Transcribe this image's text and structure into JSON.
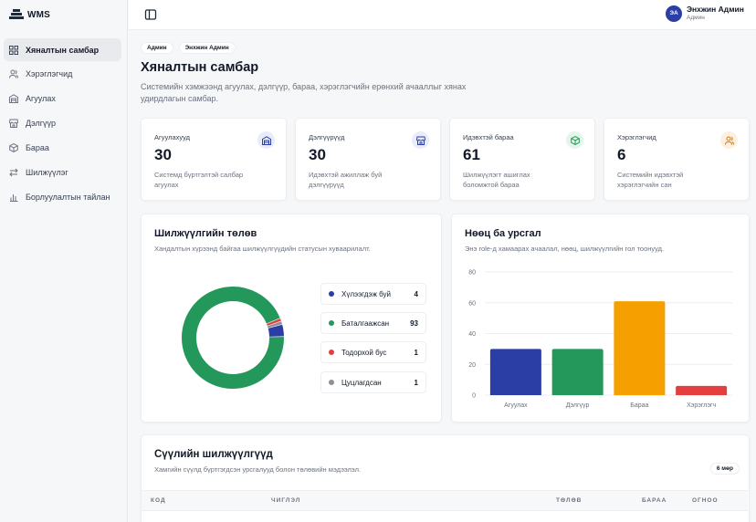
{
  "app": {
    "name": "WMS"
  },
  "sidebar": {
    "items": [
      {
        "label": "Хяналтын самбар",
        "icon": "dashboard-icon",
        "active": true
      },
      {
        "label": "Хэрэглэгчид",
        "icon": "users-icon"
      },
      {
        "label": "Агуулах",
        "icon": "warehouse-icon"
      },
      {
        "label": "Дэлгүүр",
        "icon": "store-icon"
      },
      {
        "label": "Бараа",
        "icon": "package-icon"
      },
      {
        "label": "Шилжүүлэг",
        "icon": "transfer-icon"
      },
      {
        "label": "Борлуулалтын тайлан",
        "icon": "report-icon"
      }
    ]
  },
  "header": {
    "user": {
      "initials": "ЭА",
      "name": "Энхжин Админ",
      "role": "Админ"
    }
  },
  "breadcrumb": [
    "Админ",
    "Энхжин Админ"
  ],
  "page": {
    "title": "Хяналтын самбар",
    "description": "Системийн хэмжээнд агуулах, дэлгүүр, бараа, хэрэглэгчийн ерөнхий ачааллыг хянах удирдлагын самбар."
  },
  "stats": [
    {
      "label": "Агуулахууд",
      "value": "30",
      "note": "Системд бүртгэлтэй салбар агуулах",
      "icon": "warehouse-icon",
      "color": "#2b3ea6"
    },
    {
      "label": "Дэлгүүрүүд",
      "value": "30",
      "note": "Идэвхтэй ажиллаж буй дэлгүүрүүд",
      "icon": "store-icon",
      "color": "#2b3ea6"
    },
    {
      "label": "Идэвхтэй бараа",
      "value": "61",
      "note": "Шилжүүлэгт ашиглах боломжтой бараа",
      "icon": "package-icon",
      "color": "#1f9d55"
    },
    {
      "label": "Хэрэглэгчид",
      "value": "6",
      "note": "Системийн идэвхтэй хэрэглэгчийн сан",
      "icon": "users-icon",
      "color": "#d97706"
    }
  ],
  "transfer_status": {
    "title": "Шилжүүлгийн төлөв",
    "subtitle": "Хандалтын хүрээнд байгаа шилжүүлгүүдийн статусын хуваарилалт."
  },
  "resources": {
    "title": "Нөөц ба урсгал",
    "subtitle": "Энэ role-д хамаарах ачаалал, нөөц, шилжүүлгийн гол тоонууд."
  },
  "recent": {
    "title": "Сүүлийн шилжүүлгүүд",
    "subtitle": "Хамгийн сүүлд бүртгэгдсэн урсгалууд болон төлөвийн мэдээлэл.",
    "count": "6 мөр",
    "columns": [
      "КОД",
      "ЧИГЛЭЛ",
      "ТӨЛӨВ",
      "БАРАА",
      "ОГНОО"
    ]
  },
  "chart_data": [
    {
      "type": "pie",
      "donut": true,
      "labels": [
        "Хүлээгдэж буй",
        "Баталгаажсан",
        "Тодорхой бус",
        "Цуцлагдсан"
      ],
      "values": [
        4,
        93,
        1,
        1
      ],
      "colors": [
        "#2b3ea6",
        "#23985a",
        "#e53e3e",
        "#8b8f98"
      ]
    },
    {
      "type": "bar",
      "categories": [
        "Агуулах",
        "Дэлгүүр",
        "Бараа",
        "Хэрэглэгч"
      ],
      "values": [
        30,
        30,
        61,
        6
      ],
      "colors": [
        "#2b3ea6",
        "#23985a",
        "#f5a000",
        "#e53e3e"
      ],
      "ylim": [
        0,
        80
      ],
      "yticks": [
        0,
        20,
        40,
        60,
        80
      ],
      "grid": true
    }
  ]
}
